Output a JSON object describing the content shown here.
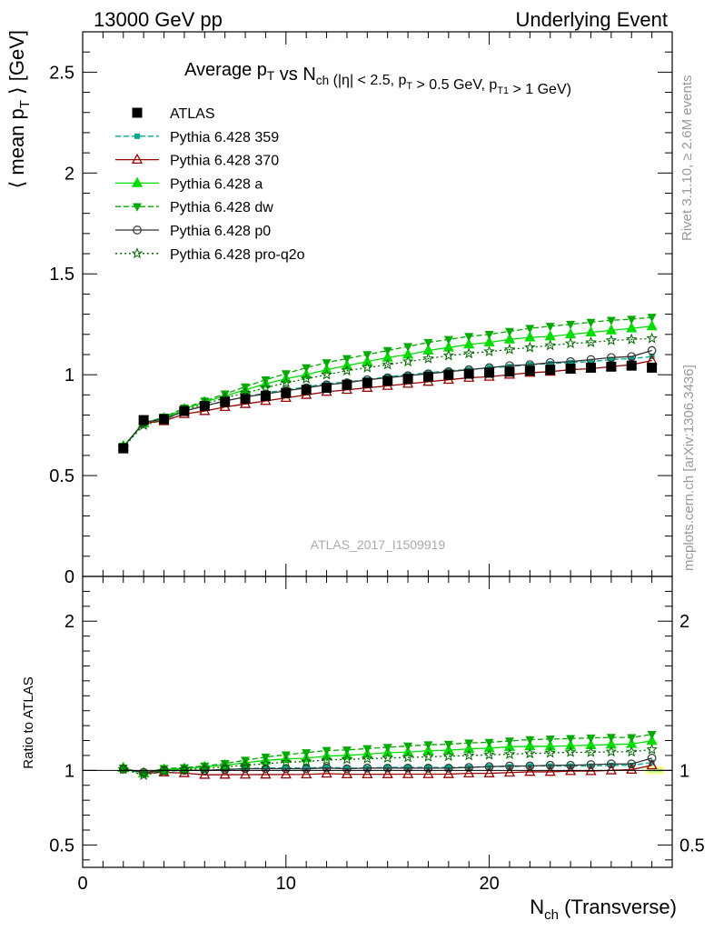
{
  "header": {
    "left": "13000 GeV pp",
    "right": "Underlying Event"
  },
  "side_labels": {
    "rivet": "Rivet 3.1.10, ≥ 2.6M events",
    "mcplots": "mcplots.cern.ch [arXiv:1306.3436]"
  },
  "watermark": "ATLAS_2017_I1509919",
  "chart_data": {
    "type": "line",
    "title": "Average p_T vs N_ch (|η| < 2.5, p_T > 0.5 GeV, p_T1 > 1 GeV)",
    "ylabel": "⟨ mean p_T ⟩ [GeV]",
    "xlabel": "N_ch (Transverse)",
    "ratio_ylabel": "Ratio to ATLAS",
    "xlim": [
      0,
      29
    ],
    "ylim": [
      0,
      2.7
    ],
    "ratio_ylim": [
      0.35,
      2.3
    ],
    "x_ticks": [
      "0",
      "10",
      "20"
    ],
    "y_ticks": [
      "0.5",
      "1",
      "1.5",
      "2",
      "2.5"
    ],
    "y_bottom_tick": "0",
    "ratio_ticks": [
      "0.5",
      "1",
      "2"
    ],
    "legend_placement": "top-left",
    "x": [
      2,
      3,
      4,
      5,
      6,
      7,
      8,
      9,
      10,
      11,
      12,
      13,
      14,
      15,
      16,
      17,
      18,
      19,
      20,
      21,
      22,
      23,
      24,
      25,
      26,
      27,
      28
    ],
    "series": [
      {
        "name": "ATLAS",
        "color": "#000000",
        "marker": "square",
        "dash": "none",
        "values": [
          0.635,
          0.775,
          0.78,
          0.82,
          0.845,
          0.865,
          0.88,
          0.895,
          0.91,
          0.925,
          0.935,
          0.95,
          0.96,
          0.97,
          0.98,
          0.99,
          1.0,
          1.005,
          1.01,
          1.015,
          1.02,
          1.025,
          1.03,
          1.035,
          1.04,
          1.045,
          1.035
        ]
      },
      {
        "name": "Pythia 6.428 359",
        "color": "#00a88f",
        "marker": "smallsquare",
        "dash": "6,3",
        "values": [
          0.64,
          0.76,
          0.775,
          0.82,
          0.845,
          0.87,
          0.89,
          0.91,
          0.925,
          0.94,
          0.955,
          0.965,
          0.975,
          0.99,
          1.0,
          1.01,
          1.02,
          1.025,
          1.035,
          1.04,
          1.05,
          1.055,
          1.06,
          1.065,
          1.075,
          1.08,
          1.09
        ]
      },
      {
        "name": "Pythia 6.428 370",
        "color": "#990000",
        "marker": "triangle-open",
        "dash": "none",
        "values": [
          0.645,
          0.76,
          0.77,
          0.805,
          0.82,
          0.84,
          0.855,
          0.87,
          0.885,
          0.9,
          0.915,
          0.925,
          0.935,
          0.945,
          0.955,
          0.965,
          0.975,
          0.985,
          0.99,
          1.0,
          1.01,
          1.015,
          1.025,
          1.03,
          1.04,
          1.05,
          1.07
        ]
      },
      {
        "name": "Pythia 6.428 a",
        "color": "#00dd00",
        "marker": "triangle",
        "dash": "none",
        "values": [
          0.645,
          0.76,
          0.785,
          0.83,
          0.865,
          0.895,
          0.925,
          0.955,
          0.98,
          1.0,
          1.025,
          1.045,
          1.065,
          1.085,
          1.1,
          1.12,
          1.135,
          1.15,
          1.16,
          1.175,
          1.185,
          1.19,
          1.2,
          1.21,
          1.22,
          1.23,
          1.24
        ]
      },
      {
        "name": "Pythia 6.428 dw",
        "color": "#00aa00",
        "marker": "triangle-down",
        "dash": "6,3",
        "values": [
          0.645,
          0.76,
          0.79,
          0.835,
          0.87,
          0.905,
          0.94,
          0.975,
          1.005,
          1.035,
          1.06,
          1.08,
          1.1,
          1.12,
          1.14,
          1.16,
          1.175,
          1.19,
          1.2,
          1.215,
          1.23,
          1.24,
          1.25,
          1.26,
          1.27,
          1.275,
          1.285
        ]
      },
      {
        "name": "Pythia 6.428 p0",
        "color": "#333333",
        "marker": "circle-open",
        "dash": "none",
        "values": [
          0.64,
          0.765,
          0.78,
          0.82,
          0.845,
          0.87,
          0.89,
          0.905,
          0.92,
          0.935,
          0.95,
          0.96,
          0.975,
          0.985,
          0.995,
          1.005,
          1.015,
          1.025,
          1.035,
          1.045,
          1.05,
          1.06,
          1.065,
          1.075,
          1.085,
          1.09,
          1.12
        ]
      },
      {
        "name": "Pythia 6.428 pro-q2o",
        "color": "#006600",
        "marker": "star",
        "dash": "2,3",
        "values": [
          0.64,
          0.75,
          0.775,
          0.825,
          0.855,
          0.885,
          0.91,
          0.935,
          0.96,
          0.98,
          1.0,
          1.02,
          1.035,
          1.05,
          1.065,
          1.08,
          1.095,
          1.105,
          1.115,
          1.125,
          1.135,
          1.145,
          1.155,
          1.16,
          1.17,
          1.175,
          1.18
        ]
      }
    ]
  }
}
